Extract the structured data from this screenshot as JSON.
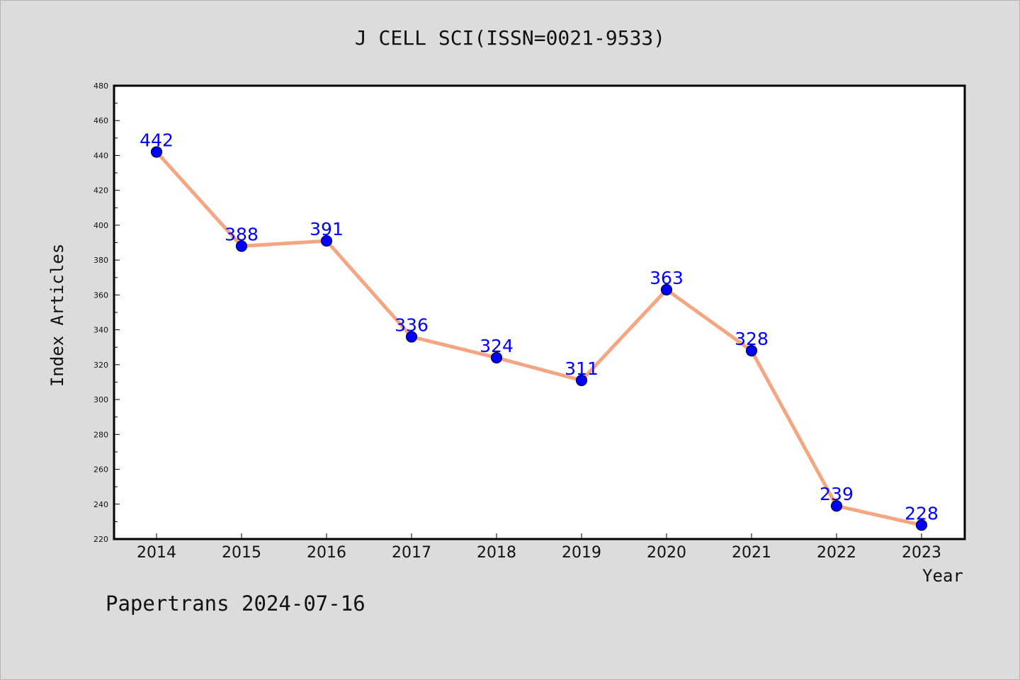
{
  "chart_data": {
    "type": "line",
    "title": "J CELL SCI(ISSN=0021-9533)",
    "xlabel": "Year",
    "ylabel": "Index Articles",
    "categories": [
      "2014",
      "2015",
      "2016",
      "2017",
      "2018",
      "2019",
      "2020",
      "2021",
      "2022",
      "2023"
    ],
    "series": [
      {
        "values": [
          442,
          388,
          391,
          336,
          324,
          311,
          363,
          328,
          239,
          228
        ]
      }
    ],
    "data_labels": [
      "442",
      "388",
      "391",
      "336",
      "324",
      "311",
      "363",
      "328",
      "239",
      "228"
    ],
    "ylim": [
      220,
      480
    ],
    "yticks": [
      220,
      240,
      260,
      280,
      300,
      320,
      340,
      360,
      380,
      400,
      420,
      440,
      460,
      480
    ],
    "grid": false,
    "colors": {
      "line": "#f4a582",
      "marker": "#0000ff",
      "label": "#0000ff",
      "background": "#dcdcdc",
      "plot_background": "#ffffff"
    }
  },
  "footer": {
    "note": "Papertrans 2024-07-16"
  }
}
